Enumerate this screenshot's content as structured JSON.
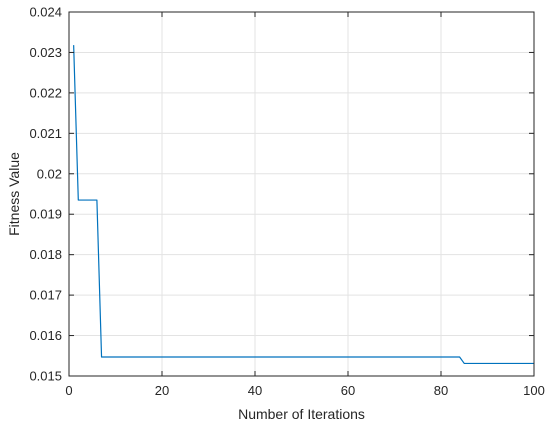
{
  "chart_data": {
    "type": "line",
    "title": "",
    "xlabel": "Number of Iterations",
    "ylabel": "Fitness Value",
    "xlim": [
      0,
      100
    ],
    "ylim": [
      0.015,
      0.024
    ],
    "xticks": [
      0,
      20,
      40,
      60,
      80,
      100
    ],
    "yticks": [
      0.015,
      0.016,
      0.017,
      0.018,
      0.019,
      0.02,
      0.021,
      0.022,
      0.023,
      0.024
    ],
    "xtick_labels": [
      "0",
      "20",
      "40",
      "60",
      "80",
      "100"
    ],
    "ytick_labels": [
      "0.015",
      "0.016",
      "0.017",
      "0.018",
      "0.019",
      "0.02",
      "0.021",
      "0.022",
      "0.023",
      "0.024"
    ],
    "grid": true,
    "legend": "none",
    "series": [
      {
        "color": "#0072BD",
        "points": [
          [
            1,
            0.02318
          ],
          [
            2,
            0.01935
          ],
          [
            6,
            0.01935
          ],
          [
            7,
            0.01547
          ],
          [
            84,
            0.01547
          ],
          [
            85,
            0.01531
          ],
          [
            100,
            0.01531
          ]
        ]
      }
    ]
  }
}
